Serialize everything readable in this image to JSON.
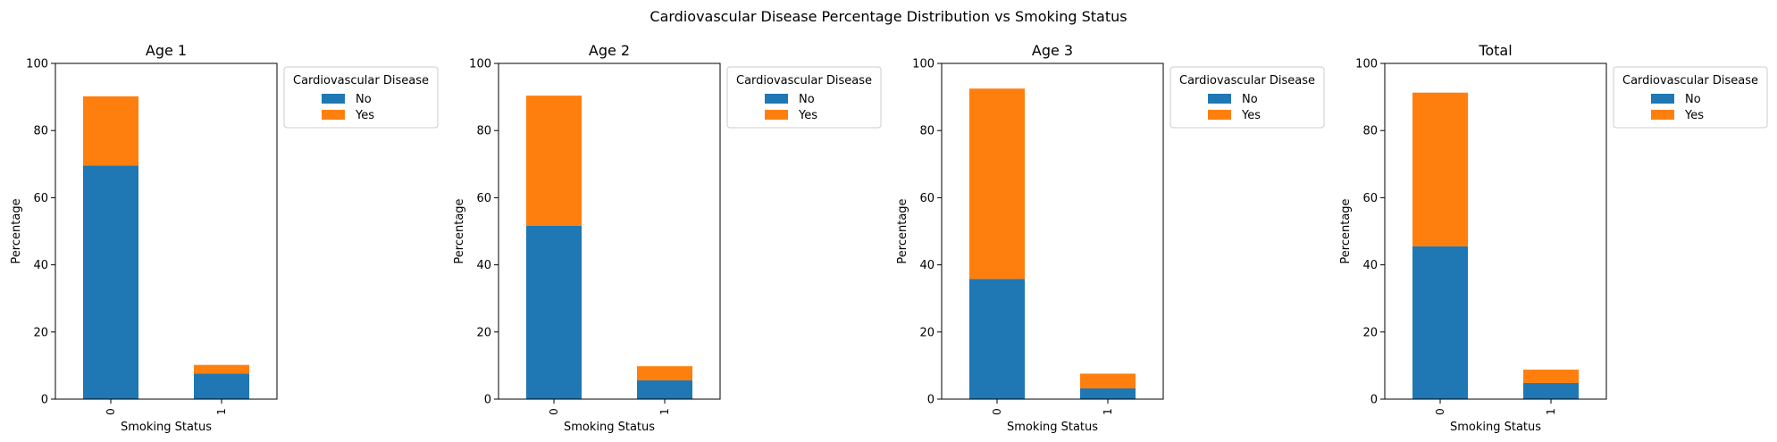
{
  "figure_title": "Cardiovascular Disease Percentage Distribution vs Smoking Status",
  "colors": {
    "No": "#1f77b4",
    "Yes": "#ff7f0e"
  },
  "chart_data": [
    {
      "type": "bar",
      "stacked": true,
      "title": "Age 1",
      "xlabel": "Smoking Status",
      "ylabel": "Percentage",
      "categories": [
        "0",
        "1"
      ],
      "ylim": [
        0,
        100
      ],
      "yticks": [
        0,
        20,
        40,
        60,
        80,
        100
      ],
      "legend": {
        "title": "Cardiovascular Disease",
        "placement": "outside upper right"
      },
      "series": [
        {
          "name": "No",
          "values": [
            69.6,
            7.6
          ]
        },
        {
          "name": "Yes",
          "values": [
            20.6,
            2.6
          ]
        }
      ]
    },
    {
      "type": "bar",
      "stacked": true,
      "title": "Age 2",
      "xlabel": "Smoking Status",
      "ylabel": "Percentage",
      "categories": [
        "0",
        "1"
      ],
      "ylim": [
        0,
        100
      ],
      "yticks": [
        0,
        20,
        40,
        60,
        80,
        100
      ],
      "legend": {
        "title": "Cardiovascular Disease",
        "placement": "outside upper right"
      },
      "series": [
        {
          "name": "No",
          "values": [
            51.6,
            5.6
          ]
        },
        {
          "name": "Yes",
          "values": [
            38.8,
            4.2
          ]
        }
      ]
    },
    {
      "type": "bar",
      "stacked": true,
      "title": "Age 3",
      "xlabel": "Smoking Status",
      "ylabel": "Percentage",
      "categories": [
        "0",
        "1"
      ],
      "ylim": [
        0,
        100
      ],
      "yticks": [
        0,
        20,
        40,
        60,
        80,
        100
      ],
      "legend": {
        "title": "Cardiovascular Disease",
        "placement": "outside upper right"
      },
      "series": [
        {
          "name": "No",
          "values": [
            35.8,
            3.2
          ]
        },
        {
          "name": "Yes",
          "values": [
            56.7,
            4.4
          ]
        }
      ]
    },
    {
      "type": "bar",
      "stacked": true,
      "title": "Total",
      "xlabel": "Smoking Status",
      "ylabel": "Percentage",
      "categories": [
        "0",
        "1"
      ],
      "ylim": [
        0,
        100
      ],
      "yticks": [
        0,
        20,
        40,
        60,
        80,
        100
      ],
      "legend": {
        "title": "Cardiovascular Disease",
        "placement": "outside upper right"
      },
      "series": [
        {
          "name": "No",
          "values": [
            45.5,
            4.8
          ]
        },
        {
          "name": "Yes",
          "values": [
            45.8,
            4.0
          ]
        }
      ]
    }
  ]
}
